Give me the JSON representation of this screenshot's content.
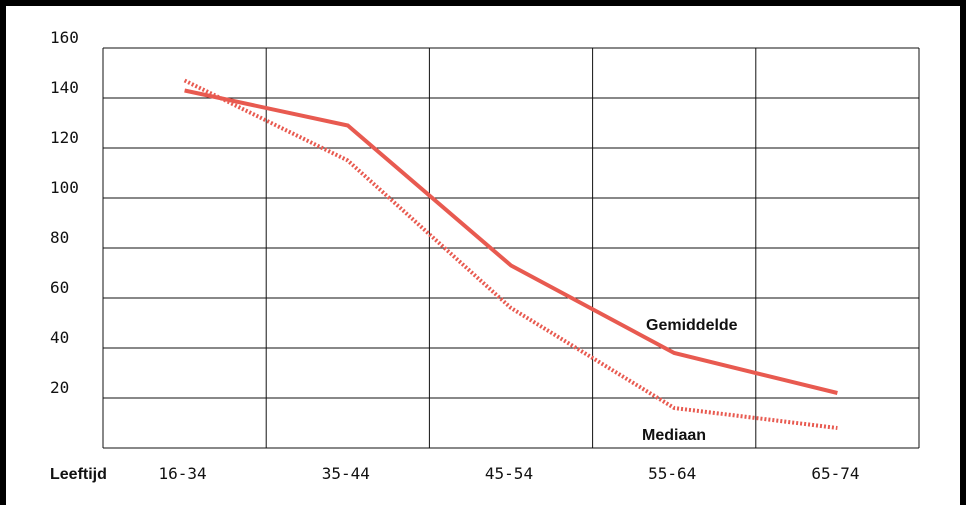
{
  "chart_data": {
    "type": "line",
    "xlabel": "Leeftijd",
    "categories": [
      "16-34",
      "35-44",
      "45-54",
      "55-64",
      "65-74"
    ],
    "ylim": [
      0,
      160
    ],
    "yticks": [
      20,
      40,
      60,
      80,
      100,
      120,
      140,
      160
    ],
    "grid": true,
    "series": [
      {
        "name": "Gemiddelde",
        "values": [
          143,
          129,
          73,
          38,
          22
        ],
        "style": "solid",
        "color": "#e85a50"
      },
      {
        "name": "Mediaan",
        "values": [
          147,
          115,
          56,
          16,
          8
        ],
        "style": "dotted",
        "color": "#e85a50"
      }
    ]
  }
}
